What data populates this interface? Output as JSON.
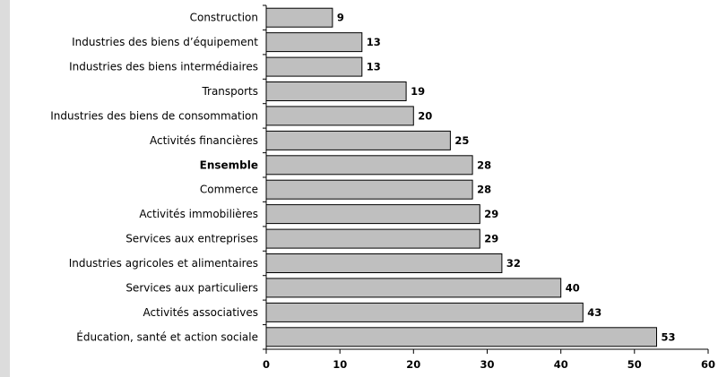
{
  "chart_data": {
    "type": "bar",
    "orientation": "horizontal",
    "categories": [
      "Construction",
      "Industries des biens d’équipement",
      "Industries des biens intermédiaires",
      "Transports",
      "Industries des biens de consommation",
      "Activités financières",
      "Ensemble",
      "Commerce",
      "Activités immobilières",
      "Services aux entreprises",
      "Industries agricoles et alimentaires",
      "Services aux particuliers",
      "Activités associatives",
      "Éducation, santé et action sociale"
    ],
    "values": [
      9,
      13,
      13,
      19,
      20,
      25,
      28,
      28,
      29,
      29,
      32,
      40,
      43,
      53
    ],
    "value_labels": [
      "9",
      "13",
      "13",
      "19",
      "20",
      "25",
      "28",
      "28",
      "29",
      "29",
      "32",
      "40",
      "43",
      "53"
    ],
    "bold_categories": [
      "Ensemble"
    ],
    "xlim": [
      0,
      60
    ],
    "xticks": [
      "0",
      "10",
      "20",
      "30",
      "40",
      "50",
      "60"
    ],
    "grid": false,
    "legend": "none",
    "colors": {
      "bar_fill": "#bfbfbf",
      "bar_stroke": "#000000",
      "frame": "#dcdcdc"
    }
  }
}
